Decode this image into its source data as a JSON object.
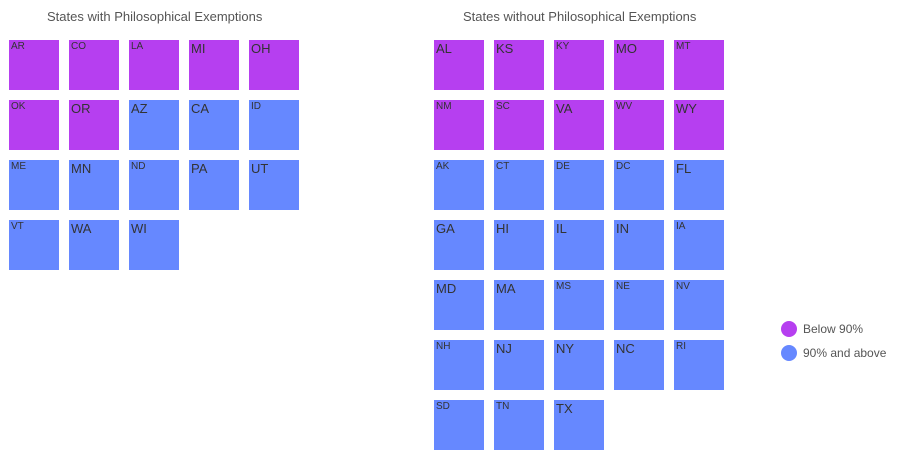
{
  "chart_data": [
    {
      "type": "tile-grid",
      "title": "States with Philosophical Exemptions",
      "tiles": [
        {
          "state": "AR",
          "category": "below"
        },
        {
          "state": "CO",
          "category": "below"
        },
        {
          "state": "LA",
          "category": "below"
        },
        {
          "state": "MI",
          "category": "below"
        },
        {
          "state": "OH",
          "category": "below"
        },
        {
          "state": "OK",
          "category": "below"
        },
        {
          "state": "OR",
          "category": "below"
        },
        {
          "state": "AZ",
          "category": "above"
        },
        {
          "state": "CA",
          "category": "above"
        },
        {
          "state": "ID",
          "category": "above"
        },
        {
          "state": "ME",
          "category": "above"
        },
        {
          "state": "MN",
          "category": "above"
        },
        {
          "state": "ND",
          "category": "above"
        },
        {
          "state": "PA",
          "category": "above"
        },
        {
          "state": "UT",
          "category": "above"
        },
        {
          "state": "VT",
          "category": "above"
        },
        {
          "state": "WA",
          "category": "above"
        },
        {
          "state": "WI",
          "category": "above"
        }
      ]
    },
    {
      "type": "tile-grid",
      "title": "States without Philosophical Exemptions",
      "tiles": [
        {
          "state": "AL",
          "category": "below"
        },
        {
          "state": "KS",
          "category": "below"
        },
        {
          "state": "KY",
          "category": "below"
        },
        {
          "state": "MO",
          "category": "below"
        },
        {
          "state": "MT",
          "category": "below"
        },
        {
          "state": "NM",
          "category": "below"
        },
        {
          "state": "SC",
          "category": "below"
        },
        {
          "state": "VA",
          "category": "below"
        },
        {
          "state": "WV",
          "category": "below"
        },
        {
          "state": "WY",
          "category": "below"
        },
        {
          "state": "AK",
          "category": "above"
        },
        {
          "state": "CT",
          "category": "above"
        },
        {
          "state": "DE",
          "category": "above"
        },
        {
          "state": "DC",
          "category": "above"
        },
        {
          "state": "FL",
          "category": "above"
        },
        {
          "state": "GA",
          "category": "above"
        },
        {
          "state": "HI",
          "category": "above"
        },
        {
          "state": "IL",
          "category": "above"
        },
        {
          "state": "IN",
          "category": "above"
        },
        {
          "state": "IA",
          "category": "above"
        },
        {
          "state": "MD",
          "category": "above"
        },
        {
          "state": "MA",
          "category": "above"
        },
        {
          "state": "MS",
          "category": "above"
        },
        {
          "state": "NE",
          "category": "above"
        },
        {
          "state": "NV",
          "category": "above"
        },
        {
          "state": "NH",
          "category": "above"
        },
        {
          "state": "NJ",
          "category": "above"
        },
        {
          "state": "NY",
          "category": "above"
        },
        {
          "state": "NC",
          "category": "above"
        },
        {
          "state": "RI",
          "category": "above"
        },
        {
          "state": "SD",
          "category": "above"
        },
        {
          "state": "TN",
          "category": "above"
        },
        {
          "state": "TX",
          "category": "above"
        }
      ]
    }
  ],
  "legend": {
    "placement": "right",
    "items": [
      {
        "key": "below",
        "label": "Below 90%",
        "color": "#b63ff0"
      },
      {
        "key": "above",
        "label": "90% and above",
        "color": "#6688ff"
      }
    ]
  }
}
